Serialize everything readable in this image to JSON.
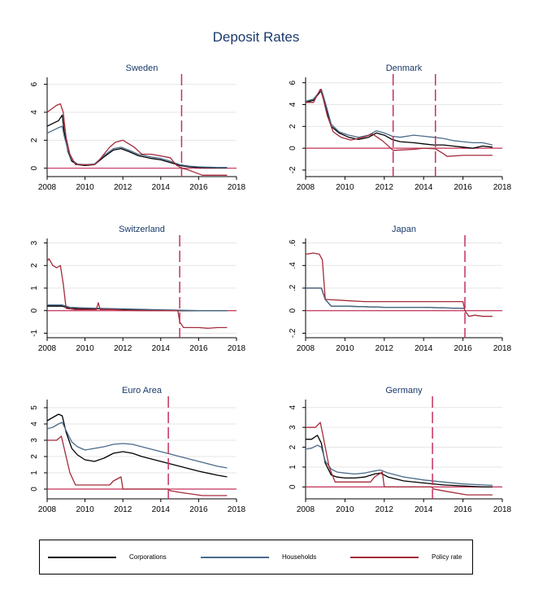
{
  "figure_title": "Deposit Rates",
  "colors": {
    "corporations": "#000000",
    "households": "#4a6b8a",
    "policy": "#a52a3a",
    "vline": "#c4325a",
    "title": "#1a3a6b"
  },
  "legend": [
    {
      "key": "corporations",
      "label": "Corporations"
    },
    {
      "key": "households",
      "label": "Households"
    },
    {
      "key": "policy",
      "label": "Policy rate"
    }
  ],
  "chart_data": [
    {
      "type": "line",
      "title": "Sweden",
      "xlim": [
        2008,
        2018
      ],
      "ylim": [
        -0.6,
        6.5
      ],
      "yticks": [
        0,
        2,
        4,
        6
      ],
      "ytick_labels": [
        "0",
        "2",
        "4",
        "6"
      ],
      "xticks": [
        2008,
        2010,
        2012,
        2014,
        2016,
        2018
      ],
      "vlines": [
        2015.1
      ],
      "series": [
        {
          "name": "Corporations",
          "key": "corporations",
          "x": [
            2008,
            2008.3,
            2008.6,
            2008.8,
            2008.9,
            2009.1,
            2009.3,
            2009.6,
            2010,
            2010.5,
            2011,
            2011.5,
            2011.9,
            2012.3,
            2012.8,
            2013.5,
            2014,
            2014.5,
            2015,
            2015.5,
            2016,
            2017,
            2017.5
          ],
          "y": [
            3.0,
            3.2,
            3.4,
            3.8,
            2.6,
            1.2,
            0.5,
            0.25,
            0.2,
            0.25,
            0.8,
            1.3,
            1.4,
            1.2,
            0.9,
            0.7,
            0.6,
            0.4,
            0.2,
            0.1,
            0.05,
            0.02,
            0.02
          ]
        },
        {
          "name": "Households",
          "key": "households",
          "x": [
            2008,
            2008.3,
            2008.6,
            2008.8,
            2008.9,
            2009.1,
            2009.3,
            2009.6,
            2010,
            2010.5,
            2011,
            2011.5,
            2011.9,
            2012.3,
            2012.8,
            2013.5,
            2014,
            2014.5,
            2015,
            2015.5,
            2016,
            2017,
            2017.5
          ],
          "y": [
            2.5,
            2.7,
            2.9,
            3.0,
            2.3,
            1.3,
            0.6,
            0.3,
            0.25,
            0.3,
            0.9,
            1.4,
            1.5,
            1.3,
            1.0,
            0.8,
            0.7,
            0.5,
            0.25,
            0.15,
            0.1,
            0.05,
            0.05
          ]
        },
        {
          "name": "Policy rate",
          "key": "policy",
          "x": [
            2008,
            2008.2,
            2008.5,
            2008.7,
            2008.85,
            2009.0,
            2009.2,
            2009.5,
            2010.5,
            2010.7,
            2011.0,
            2011.3,
            2011.6,
            2012.0,
            2012.3,
            2012.6,
            2013.0,
            2013.5,
            2014.5,
            2014.8,
            2015.1,
            2015.4,
            2015.8,
            2016.2,
            2017.5
          ],
          "y": [
            4.0,
            4.2,
            4.5,
            4.6,
            4.0,
            2.2,
            1.0,
            0.25,
            0.25,
            0.5,
            1.0,
            1.5,
            1.85,
            2.0,
            1.75,
            1.5,
            1.0,
            1.0,
            0.75,
            0.25,
            0.0,
            -0.1,
            -0.3,
            -0.5,
            -0.5
          ]
        }
      ]
    },
    {
      "type": "line",
      "title": "Denmark",
      "xlim": [
        2008,
        2018
      ],
      "ylim": [
        -2.6,
        6.5
      ],
      "yticks": [
        -2,
        0,
        2,
        4,
        6
      ],
      "ytick_labels": [
        "-2",
        "0",
        "2",
        "4",
        "6"
      ],
      "xticks": [
        2008,
        2010,
        2012,
        2014,
        2016,
        2018
      ],
      "vlines": [
        2012.45,
        2014.6
      ],
      "series": [
        {
          "name": "Corporations",
          "key": "corporations",
          "x": [
            2008,
            2008.4,
            2008.8,
            2009.0,
            2009.3,
            2009.7,
            2010.2,
            2010.7,
            2011.2,
            2011.6,
            2012.0,
            2012.4,
            2012.8,
            2013.5,
            2014,
            2014.5,
            2015,
            2015.5,
            2016,
            2016.5,
            2017,
            2017.5
          ],
          "y": [
            4.2,
            4.4,
            5.3,
            4.0,
            2.0,
            1.4,
            1.0,
            0.8,
            1.0,
            1.4,
            1.2,
            0.8,
            0.6,
            0.5,
            0.4,
            0.3,
            0.3,
            0.2,
            0.1,
            0.0,
            0.2,
            0.1
          ]
        },
        {
          "name": "Households",
          "key": "households",
          "x": [
            2008,
            2008.4,
            2008.8,
            2009.0,
            2009.3,
            2009.7,
            2010.2,
            2010.7,
            2011.2,
            2011.6,
            2012.0,
            2012.4,
            2012.8,
            2013.5,
            2014,
            2014.5,
            2015,
            2015.5,
            2016,
            2016.5,
            2017,
            2017.5
          ],
          "y": [
            4.3,
            4.5,
            5.4,
            4.2,
            2.2,
            1.5,
            1.2,
            1.0,
            1.2,
            1.6,
            1.4,
            1.1,
            1.0,
            1.2,
            1.1,
            1.0,
            0.9,
            0.7,
            0.6,
            0.5,
            0.5,
            0.3
          ]
        },
        {
          "name": "Policy rate",
          "key": "policy",
          "x": [
            2008,
            2008.4,
            2008.75,
            2008.9,
            2009.1,
            2009.4,
            2009.8,
            2010.3,
            2011.0,
            2011.4,
            2011.9,
            2012.45,
            2013.5,
            2014.0,
            2014.6,
            2015.0,
            2015.2,
            2016.0,
            2017.5
          ],
          "y": [
            4.2,
            4.2,
            5.4,
            4.5,
            3.0,
            1.5,
            1.0,
            0.75,
            1.05,
            1.3,
            0.7,
            -0.2,
            -0.1,
            0.0,
            -0.05,
            -0.5,
            -0.75,
            -0.65,
            -0.65
          ]
        }
      ]
    },
    {
      "type": "line",
      "title": "Switzerland",
      "xlim": [
        2008,
        2018
      ],
      "ylim": [
        -1.2,
        3.2
      ],
      "yticks": [
        -1,
        0,
        1,
        2,
        3
      ],
      "ytick_labels": [
        "-1",
        "0",
        "1",
        "2",
        "3"
      ],
      "xticks": [
        2008,
        2010,
        2012,
        2014,
        2016,
        2018
      ],
      "vlines": [
        2015.0
      ],
      "series": [
        {
          "name": "Corporations",
          "key": "corporations",
          "x": [
            2008,
            2008.8,
            2009.2,
            2010,
            2011,
            2012,
            2013,
            2014,
            2015,
            2016,
            2017.5
          ],
          "y": [
            0.2,
            0.2,
            0.1,
            0.08,
            0.08,
            0.05,
            0.05,
            0.02,
            0.0,
            0.0,
            0.0
          ]
        },
        {
          "name": "Households",
          "key": "households",
          "x": [
            2008,
            2008.8,
            2009.2,
            2010,
            2011,
            2012,
            2013,
            2014,
            2015,
            2016,
            2017.5
          ],
          "y": [
            0.25,
            0.25,
            0.15,
            0.12,
            0.1,
            0.08,
            0.06,
            0.04,
            0.02,
            0.0,
            0.0
          ]
        },
        {
          "name": "Policy rate",
          "key": "policy",
          "x": [
            2008,
            2008.1,
            2008.3,
            2008.5,
            2008.7,
            2008.85,
            2009.0,
            2009.5,
            2010.0,
            2010.6,
            2010.7,
            2010.8,
            2011.0,
            2011.5,
            2012,
            2013,
            2014,
            2014.9,
            2015.0,
            2015.2,
            2016,
            2016.5,
            2017,
            2017.5
          ],
          "y": [
            2.2,
            2.3,
            2.0,
            1.9,
            2.0,
            1.2,
            0.1,
            0.05,
            0.05,
            0.05,
            0.35,
            0.05,
            0.05,
            0.05,
            0.02,
            0.0,
            0.0,
            0.0,
            -0.5,
            -0.75,
            -0.75,
            -0.78,
            -0.75,
            -0.75
          ]
        }
      ]
    },
    {
      "type": "line",
      "title": "Japan",
      "xlim": [
        2008,
        2018
      ],
      "ylim": [
        -0.24,
        0.64
      ],
      "yticks": [
        -0.2,
        0,
        0.2,
        0.4,
        0.6
      ],
      "ytick_labels": [
        "-.2",
        "0",
        ".2",
        ".4",
        ".6"
      ],
      "xticks": [
        2008,
        2010,
        2012,
        2014,
        2016,
        2018
      ],
      "vlines": [
        2016.1
      ],
      "series": [
        {
          "name": "Corporations",
          "key": "corporations",
          "x": [
            2008,
            2008.8,
            2009.0,
            2009.3,
            2010,
            2012,
            2014,
            2016,
            2016.1
          ],
          "y": [
            0.2,
            0.2,
            0.1,
            0.04,
            0.04,
            0.03,
            0.03,
            0.02,
            0.02
          ]
        },
        {
          "name": "Households",
          "key": "households",
          "x": [
            2008,
            2008.8,
            2009.0,
            2009.3,
            2010,
            2012,
            2014,
            2016,
            2016.1
          ],
          "y": [
            0.2,
            0.2,
            0.1,
            0.04,
            0.04,
            0.03,
            0.03,
            0.02,
            0.02
          ]
        },
        {
          "name": "Policy rate",
          "key": "policy",
          "x": [
            2008,
            2008.4,
            2008.7,
            2008.85,
            2009.0,
            2010.0,
            2011.0,
            2012.0,
            2013.0,
            2014.0,
            2015.0,
            2016.0,
            2016.1,
            2016.3,
            2016.6,
            2017.0,
            2017.5
          ],
          "y": [
            0.5,
            0.51,
            0.5,
            0.45,
            0.1,
            0.09,
            0.08,
            0.08,
            0.08,
            0.08,
            0.08,
            0.08,
            0.0,
            -0.05,
            -0.04,
            -0.05,
            -0.05
          ]
        }
      ]
    },
    {
      "type": "line",
      "title": "Euro Area",
      "xlim": [
        2008,
        2018
      ],
      "ylim": [
        -0.6,
        5.5
      ],
      "yticks": [
        0,
        1,
        2,
        3,
        4,
        5
      ],
      "ytick_labels": [
        "0",
        "1",
        "2",
        "3",
        "4",
        "5"
      ],
      "xticks": [
        2008,
        2010,
        2012,
        2014,
        2016,
        2018
      ],
      "vlines": [
        2014.4
      ],
      "series": [
        {
          "name": "Corporations",
          "key": "corporations",
          "x": [
            2008,
            2008.3,
            2008.6,
            2008.8,
            2009.0,
            2009.3,
            2009.6,
            2010,
            2010.5,
            2011,
            2011.5,
            2012,
            2012.5,
            2013,
            2014,
            2015,
            2016,
            2017,
            2017.5
          ],
          "y": [
            4.2,
            4.4,
            4.6,
            4.5,
            3.5,
            2.5,
            2.1,
            1.8,
            1.7,
            1.9,
            2.2,
            2.3,
            2.2,
            2.0,
            1.7,
            1.4,
            1.1,
            0.85,
            0.75
          ]
        },
        {
          "name": "Households",
          "key": "households",
          "x": [
            2008,
            2008.3,
            2008.6,
            2008.8,
            2009.0,
            2009.3,
            2009.6,
            2010,
            2010.5,
            2011,
            2011.5,
            2012,
            2012.5,
            2013,
            2014,
            2015,
            2016,
            2017,
            2017.5
          ],
          "y": [
            3.7,
            3.8,
            4.0,
            4.1,
            3.6,
            2.9,
            2.6,
            2.4,
            2.5,
            2.6,
            2.75,
            2.8,
            2.75,
            2.6,
            2.3,
            2.0,
            1.7,
            1.4,
            1.3
          ]
        },
        {
          "name": "Policy rate",
          "key": "policy",
          "x": [
            2008,
            2008.5,
            2008.75,
            2008.85,
            2009.0,
            2009.2,
            2009.5,
            2011.3,
            2011.5,
            2011.9,
            2012.0,
            2014.4,
            2014.5,
            2015.0,
            2016.2,
            2017.5
          ],
          "y": [
            3.0,
            3.0,
            3.25,
            2.75,
            2.0,
            1.0,
            0.25,
            0.25,
            0.5,
            0.75,
            0.0,
            0.0,
            -0.1,
            -0.2,
            -0.4,
            -0.4
          ]
        }
      ]
    },
    {
      "type": "line",
      "title": "Germany",
      "xlim": [
        2008,
        2018
      ],
      "ylim": [
        -0.6,
        4.4
      ],
      "yticks": [
        0,
        1,
        2,
        3,
        4
      ],
      "ytick_labels": [
        "0",
        "1",
        "2",
        "3",
        "4"
      ],
      "xticks": [
        2008,
        2010,
        2012,
        2014,
        2016,
        2018
      ],
      "vlines": [
        2014.45
      ],
      "series": [
        {
          "name": "Corporations",
          "key": "corporations",
          "x": [
            2008,
            2008.3,
            2008.6,
            2008.8,
            2009.0,
            2009.3,
            2009.6,
            2010,
            2010.5,
            2011,
            2011.5,
            2011.8,
            2012.2,
            2013,
            2014,
            2015,
            2016,
            2017,
            2017.5
          ],
          "y": [
            2.4,
            2.4,
            2.6,
            2.2,
            1.2,
            0.6,
            0.5,
            0.45,
            0.45,
            0.5,
            0.65,
            0.7,
            0.5,
            0.3,
            0.2,
            0.1,
            0.05,
            0.0,
            0.0
          ]
        },
        {
          "name": "Households",
          "key": "households",
          "x": [
            2008,
            2008.3,
            2008.6,
            2008.8,
            2009.0,
            2009.3,
            2009.6,
            2010,
            2010.5,
            2011,
            2011.5,
            2011.8,
            2012.2,
            2013,
            2014,
            2015,
            2016,
            2017,
            2017.5
          ],
          "y": [
            1.9,
            1.95,
            2.1,
            2.0,
            1.3,
            0.9,
            0.75,
            0.7,
            0.65,
            0.7,
            0.8,
            0.85,
            0.7,
            0.5,
            0.35,
            0.25,
            0.15,
            0.1,
            0.08
          ]
        },
        {
          "name": "Policy rate",
          "key": "policy",
          "x": [
            2008,
            2008.5,
            2008.75,
            2008.85,
            2009.0,
            2009.2,
            2009.5,
            2011.3,
            2011.5,
            2011.9,
            2012.0,
            2014.4,
            2014.5,
            2015.0,
            2016.2,
            2017.5
          ],
          "y": [
            3.0,
            3.0,
            3.25,
            2.75,
            2.0,
            1.0,
            0.25,
            0.25,
            0.5,
            0.75,
            0.0,
            0.0,
            -0.1,
            -0.2,
            -0.4,
            -0.4
          ]
        }
      ]
    }
  ]
}
